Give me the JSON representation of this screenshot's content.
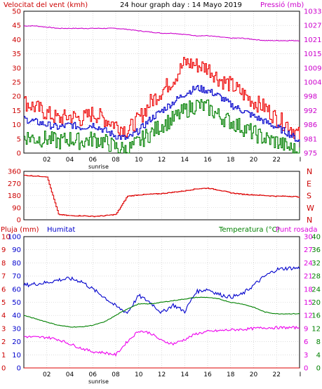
{
  "chart_data": [
    {
      "type": "line",
      "title": "24 hour graph day : 14 Mayo 2019",
      "left_axis_label": "Velocitat del vent (kmh)",
      "right_axis_label": "Pressió (mb)",
      "left_ylim": [
        0,
        50
      ],
      "left_ticks": [
        "0",
        "5",
        "10",
        "15",
        "20",
        "25",
        "30",
        "35",
        "40",
        "45",
        "50"
      ],
      "right_ticks": [
        "975",
        "981",
        "986",
        "992",
        "998",
        "1004",
        "1009",
        "1015",
        "1021",
        "1027",
        "1033"
      ],
      "right_ylim": [
        975,
        1033
      ],
      "x_ticks": [
        "02",
        "04",
        "06",
        "08",
        "10",
        "12",
        "14",
        "16",
        "18",
        "20",
        "22"
      ],
      "x_end_tick": "I",
      "sunrise_label": "sunrise",
      "sunrise_hour": 6.5,
      "grid": true,
      "series": [
        {
          "key": "pressure",
          "color": "#cc00cc",
          "axis": "right",
          "x": [
            0,
            1,
            2,
            3,
            4,
            5,
            6,
            7,
            8,
            9,
            10,
            11,
            12,
            13,
            14,
            15,
            16,
            17,
            18,
            19,
            20,
            21,
            22,
            23,
            24
          ],
          "y": [
            1027,
            1027,
            1026.5,
            1026,
            1026,
            1026,
            1026,
            1026,
            1026,
            1025.6,
            1025,
            1024.5,
            1024,
            1024,
            1023.5,
            1023,
            1023,
            1022.5,
            1022,
            1022,
            1021.5,
            1021,
            1021,
            1021,
            1021
          ]
        },
        {
          "key": "gust",
          "color": "#ee0000",
          "axis": "left",
          "x": [
            0,
            1,
            2,
            3,
            4,
            5,
            6,
            7,
            8,
            9,
            10,
            11,
            12,
            13,
            14,
            15,
            16,
            17,
            18,
            19,
            20,
            21,
            22,
            23,
            24
          ],
          "y": [
            18,
            16,
            14,
            12,
            13,
            12,
            14,
            12,
            10,
            8,
            12,
            18,
            22,
            26,
            32,
            31,
            30,
            26,
            24,
            21,
            18,
            16,
            12,
            10,
            6
          ]
        },
        {
          "key": "average",
          "color": "#0000cc",
          "axis": "left",
          "x": [
            0,
            1,
            2,
            3,
            4,
            5,
            6,
            7,
            8,
            9,
            10,
            11,
            12,
            13,
            14,
            15,
            16,
            17,
            18,
            19,
            20,
            21,
            22,
            23,
            24
          ],
          "y": [
            12,
            11,
            10,
            9,
            10,
            9,
            10,
            8,
            6,
            5,
            8,
            12,
            15,
            18,
            21,
            23,
            22,
            20,
            17,
            15,
            13,
            11,
            9,
            7,
            4
          ]
        },
        {
          "key": "low",
          "color": "#008000",
          "axis": "left",
          "x": [
            0,
            1,
            2,
            3,
            4,
            5,
            6,
            7,
            8,
            9,
            10,
            11,
            12,
            13,
            14,
            15,
            16,
            17,
            18,
            19,
            20,
            21,
            22,
            23,
            24
          ],
          "y": [
            6,
            5,
            5,
            4,
            5,
            4,
            5,
            4,
            2,
            1,
            4,
            7,
            10,
            12,
            15,
            17,
            16,
            13,
            11,
            9,
            7,
            5,
            4,
            2,
            0
          ]
        }
      ]
    },
    {
      "type": "line",
      "left_ylim": [
        0,
        360
      ],
      "left_ticks": [
        "0",
        "90",
        "180",
        "270",
        "360"
      ],
      "right_ticks": [
        "N",
        "W",
        "S",
        "E",
        "N"
      ],
      "series": [
        {
          "key": "direction",
          "color": "#dd0000",
          "x": [
            0,
            1,
            2,
            3,
            4,
            5,
            6,
            7,
            8,
            9,
            10,
            11,
            12,
            13,
            14,
            15,
            16,
            17,
            18,
            19,
            20,
            21,
            22,
            23,
            24
          ],
          "y": [
            330,
            325,
            320,
            40,
            30,
            30,
            25,
            30,
            40,
            175,
            185,
            190,
            195,
            205,
            215,
            230,
            235,
            220,
            200,
            190,
            185,
            180,
            175,
            175,
            170
          ]
        }
      ]
    },
    {
      "type": "line",
      "left_axis_label": "Pluja (mm)",
      "left_axis_label2": "Humitat",
      "right_axis_label": "Temperatura (°C)",
      "right_axis_label2": "Punt rosada",
      "rain_ticks": [
        "0",
        "1",
        "2",
        "3",
        "4",
        "5",
        "6",
        "7",
        "8",
        "9",
        "10"
      ],
      "humidity_ticks": [
        "0",
        "10",
        "20",
        "30",
        "40",
        "50",
        "60",
        "70",
        "80",
        "90",
        "100"
      ],
      "temp_ticks": [
        "0",
        "4",
        "8",
        "12",
        "16",
        "20",
        "24",
        "28",
        "32",
        "36",
        "40"
      ],
      "dew_ticks": [
        "0",
        "3",
        "6",
        "9",
        "12",
        "15",
        "18",
        "21",
        "24",
        "27",
        "30"
      ],
      "series": [
        {
          "key": "humidity",
          "color": "#0000cc",
          "axis": "humidity",
          "ylim": [
            0,
            100
          ],
          "x": [
            0,
            1,
            2,
            3,
            4,
            5,
            6,
            7,
            8,
            9,
            10,
            11,
            12,
            13,
            14,
            15,
            16,
            17,
            18,
            19,
            20,
            21,
            22,
            23,
            24
          ],
          "y": [
            63,
            64,
            65,
            67,
            68,
            66,
            60,
            54,
            47,
            42,
            55,
            50,
            42,
            48,
            43,
            58,
            60,
            56,
            54,
            56,
            63,
            70,
            75,
            76,
            76
          ]
        },
        {
          "key": "temperature",
          "color": "#008000",
          "axis": "temperature",
          "ylim": [
            0,
            40
          ],
          "x": [
            0,
            1,
            2,
            3,
            4,
            5,
            6,
            7,
            8,
            9,
            10,
            11,
            12,
            13,
            14,
            15,
            16,
            17,
            18,
            19,
            20,
            21,
            22,
            23,
            24
          ],
          "y": [
            16,
            15,
            14,
            13,
            12.5,
            12.5,
            13,
            14,
            16,
            18,
            19.5,
            19.5,
            20,
            20.5,
            21,
            21.5,
            21.5,
            21,
            20,
            19.5,
            18.5,
            17,
            16.5,
            16.5,
            16.5
          ]
        },
        {
          "key": "dewpoint",
          "color": "#ee00ee",
          "axis": "dewpoint",
          "ylim": [
            0,
            30
          ],
          "x": [
            0,
            1,
            2,
            3,
            4,
            5,
            6,
            7,
            8,
            9,
            10,
            11,
            12,
            13,
            14,
            15,
            16,
            17,
            18,
            19,
            20,
            21,
            22,
            23,
            24
          ],
          "y": [
            7.2,
            7,
            7,
            6.5,
            5.5,
            4.5,
            3.7,
            3.5,
            3,
            6,
            8.5,
            8,
            6.2,
            5.5,
            6.5,
            7.8,
            8.3,
            8.5,
            8.7,
            8.8,
            9,
            9.2,
            9.2,
            9.2,
            9.2
          ]
        },
        {
          "key": "rain",
          "color": "#dd0000",
          "axis": "rain",
          "ylim": [
            0,
            10
          ],
          "x": [
            0,
            24
          ],
          "y": [
            0,
            0
          ]
        }
      ],
      "x_ticks": [
        "02",
        "04",
        "06",
        "08",
        "10",
        "12",
        "14",
        "16",
        "18",
        "20",
        "22"
      ],
      "x_end_tick": "I",
      "sunrise_label": "sunrise"
    }
  ]
}
